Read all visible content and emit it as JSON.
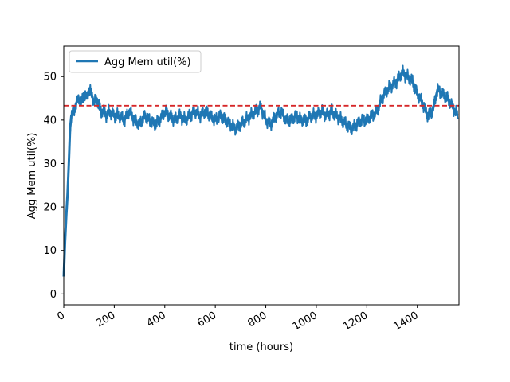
{
  "chart_data": {
    "type": "line",
    "xlabel": "time (hours)",
    "ylabel": "Agg Mem util(%)",
    "xlim": [
      0,
      1565
    ],
    "ylim": [
      -2.5,
      57
    ],
    "x_ticks": [
      0,
      200,
      400,
      600,
      800,
      1000,
      1200,
      1400
    ],
    "x_tick_labels": [
      "0",
      "200",
      "400",
      "600",
      "800",
      "1000",
      "1200",
      "1400"
    ],
    "y_ticks": [
      0,
      10,
      20,
      30,
      40,
      50
    ],
    "y_tick_labels": [
      "0",
      "10",
      "20",
      "30",
      "40",
      "50"
    ],
    "grid": false,
    "legend": {
      "position": "upper-left",
      "entries": [
        "Agg Mem util(%)"
      ]
    },
    "series": [
      {
        "name": "Agg Mem util(%)",
        "color": "#1f77b4",
        "x": [
          0,
          5,
          10,
          15,
          20,
          25,
          30,
          40,
          50,
          60,
          70,
          80,
          90,
          100,
          110,
          120,
          130,
          140,
          150,
          160,
          170,
          180,
          200,
          220,
          240,
          260,
          280,
          300,
          320,
          340,
          360,
          380,
          400,
          420,
          440,
          460,
          480,
          500,
          520,
          540,
          560,
          580,
          600,
          620,
          640,
          660,
          680,
          700,
          720,
          740,
          760,
          780,
          800,
          820,
          840,
          860,
          880,
          900,
          920,
          940,
          960,
          980,
          1000,
          1020,
          1040,
          1060,
          1080,
          1100,
          1120,
          1140,
          1160,
          1180,
          1200,
          1220,
          1240,
          1260,
          1280,
          1300,
          1320,
          1340,
          1360,
          1380,
          1400,
          1420,
          1440,
          1460,
          1480,
          1500,
          1520,
          1540,
          1560
        ],
        "values": [
          4,
          12,
          18,
          23,
          30,
          38,
          41,
          42,
          44,
          45,
          44,
          46,
          45,
          47,
          46,
          44,
          45,
          43,
          42,
          42,
          41,
          42,
          41,
          41,
          40,
          42,
          40,
          39,
          41,
          40,
          39,
          40,
          42,
          41,
          40,
          41,
          40,
          41,
          42,
          41,
          42,
          41,
          40,
          41,
          40,
          39,
          38,
          39,
          40,
          41,
          42,
          43,
          40,
          39,
          41,
          42,
          40,
          40,
          41,
          40,
          40,
          41,
          41,
          42,
          41,
          42,
          41,
          40,
          39,
          38,
          39,
          40,
          40,
          41,
          42,
          45,
          47,
          48,
          49,
          51,
          50,
          49,
          46,
          44,
          41,
          42,
          47,
          46,
          45,
          43,
          41
        ]
      }
    ],
    "reference_line": {
      "y": 43.3,
      "color": "#d62728",
      "style": "dashed"
    }
  }
}
